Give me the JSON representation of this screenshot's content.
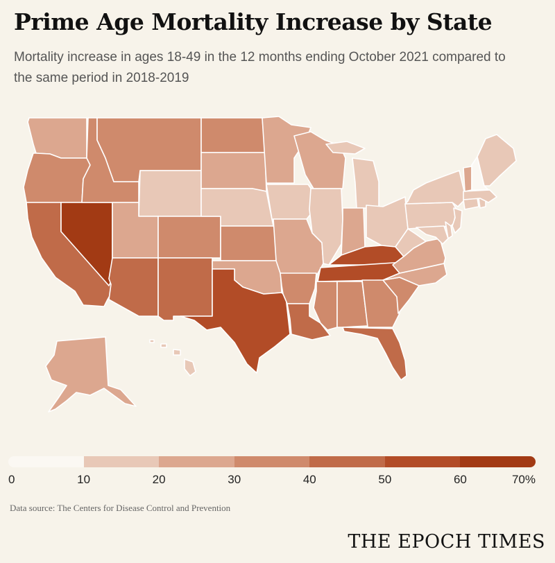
{
  "header": {
    "title": "Prime Age Mortality Increase by State",
    "subtitle": "Mortality increase in ages 18-49 in the 12 months ending October 2021 compared to the same period in 2018-2019"
  },
  "legend": {
    "bins": [
      {
        "color": "#fbf8f3"
      },
      {
        "color": "#e8c8b7"
      },
      {
        "color": "#dca78f"
      },
      {
        "color": "#cf8a6c"
      },
      {
        "color": "#c06b49"
      },
      {
        "color": "#b24c27"
      },
      {
        "color": "#a23a14"
      }
    ],
    "labels": [
      "0",
      "10",
      "20",
      "30",
      "40",
      "50",
      "60",
      "70%"
    ]
  },
  "map_data": {
    "type": "choropleth",
    "region": "United States",
    "value_unit": "percent",
    "states": [
      {
        "name": "Washington",
        "bin": 2
      },
      {
        "name": "Oregon",
        "bin": 3
      },
      {
        "name": "California",
        "bin": 4
      },
      {
        "name": "Nevada",
        "bin": 6
      },
      {
        "name": "Idaho",
        "bin": 3
      },
      {
        "name": "Montana",
        "bin": 3
      },
      {
        "name": "Wyoming",
        "bin": 1
      },
      {
        "name": "Utah",
        "bin": 2
      },
      {
        "name": "Arizona",
        "bin": 4
      },
      {
        "name": "Colorado",
        "bin": 3
      },
      {
        "name": "New Mexico",
        "bin": 4
      },
      {
        "name": "North Dakota",
        "bin": 3
      },
      {
        "name": "South Dakota",
        "bin": 2
      },
      {
        "name": "Nebraska",
        "bin": 1
      },
      {
        "name": "Kansas",
        "bin": 3
      },
      {
        "name": "Oklahoma",
        "bin": 2
      },
      {
        "name": "Texas",
        "bin": 5
      },
      {
        "name": "Minnesota",
        "bin": 2
      },
      {
        "name": "Iowa",
        "bin": 1
      },
      {
        "name": "Missouri",
        "bin": 2
      },
      {
        "name": "Arkansas",
        "bin": 3
      },
      {
        "name": "Louisiana",
        "bin": 4
      },
      {
        "name": "Wisconsin",
        "bin": 2
      },
      {
        "name": "Illinois",
        "bin": 1
      },
      {
        "name": "Michigan",
        "bin": 1
      },
      {
        "name": "Indiana",
        "bin": 2
      },
      {
        "name": "Ohio",
        "bin": 1
      },
      {
        "name": "Kentucky",
        "bin": 5
      },
      {
        "name": "Tennessee",
        "bin": 5
      },
      {
        "name": "Mississippi",
        "bin": 3
      },
      {
        "name": "Alabama",
        "bin": 3
      },
      {
        "name": "Georgia",
        "bin": 3
      },
      {
        "name": "Florida",
        "bin": 4
      },
      {
        "name": "South Carolina",
        "bin": 3
      },
      {
        "name": "North Carolina",
        "bin": 2
      },
      {
        "name": "Virginia",
        "bin": 2
      },
      {
        "name": "West Virginia",
        "bin": 1
      },
      {
        "name": "Pennsylvania",
        "bin": 1
      },
      {
        "name": "New York",
        "bin": 1
      },
      {
        "name": "Maryland",
        "bin": 1
      },
      {
        "name": "Delaware",
        "bin": 1
      },
      {
        "name": "New Jersey",
        "bin": 1
      },
      {
        "name": "Connecticut",
        "bin": 1
      },
      {
        "name": "Rhode Island",
        "bin": 1
      },
      {
        "name": "Massachusetts",
        "bin": 1
      },
      {
        "name": "Vermont",
        "bin": 2
      },
      {
        "name": "New Hampshire",
        "bin": 0
      },
      {
        "name": "Maine",
        "bin": 1
      },
      {
        "name": "Alaska",
        "bin": 2
      },
      {
        "name": "Hawaii",
        "bin": 1
      }
    ]
  },
  "footer": {
    "source": "Data source: The Centers for Disease Control and Prevention",
    "logo": "THE EPOCH TIMES"
  }
}
